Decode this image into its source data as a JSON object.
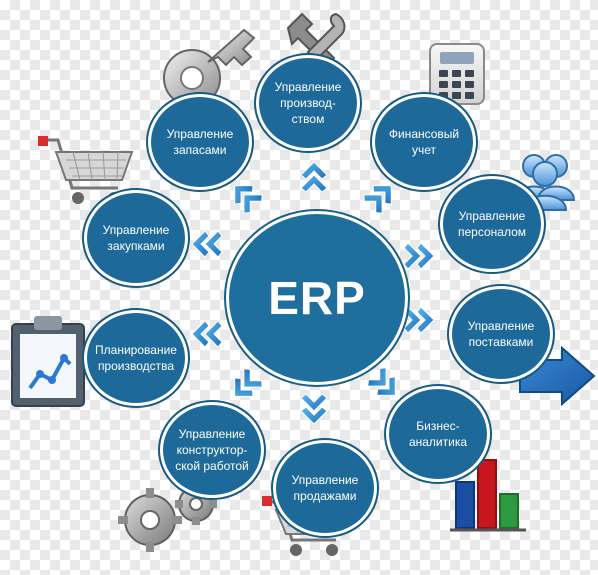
{
  "center": {
    "label": "ERP"
  },
  "nodes": [
    {
      "id": "inventory",
      "label": "Управление\nзапасами"
    },
    {
      "id": "production",
      "label": "Управление\nпроизвод-\nством"
    },
    {
      "id": "finance",
      "label": "Финансовый\nучет"
    },
    {
      "id": "personnel",
      "label": "Управление\nперсоналом"
    },
    {
      "id": "purchasing",
      "label": "Управление\nзакупками"
    },
    {
      "id": "planning",
      "label": "Планирование\nпроизводства"
    },
    {
      "id": "supply",
      "label": "Управление\nпоставками"
    },
    {
      "id": "bi",
      "label": "Бизнес-\nаналитика"
    },
    {
      "id": "design",
      "label": "Управление\nконструктор-\nской работой"
    },
    {
      "id": "sales",
      "label": "Управление\nпродажами"
    }
  ],
  "colors": {
    "node_fill": "#1d6a9a",
    "hub_fill": "#1e6f9e",
    "arrow": "#2c8fd1",
    "arrow_dark": "#1568ad",
    "chart_red": "#c8161d",
    "chart_blue": "#1c4fa3",
    "chart_green": "#2e9a3f"
  },
  "icons": [
    "key-icon",
    "tools-icon",
    "calculator-icon",
    "users-icon",
    "shopping-cart-icon",
    "clipboard-chart-icon",
    "right-arrow-icon",
    "bar-chart-icon",
    "gears-icon",
    "shopping-cart-icon"
  ]
}
